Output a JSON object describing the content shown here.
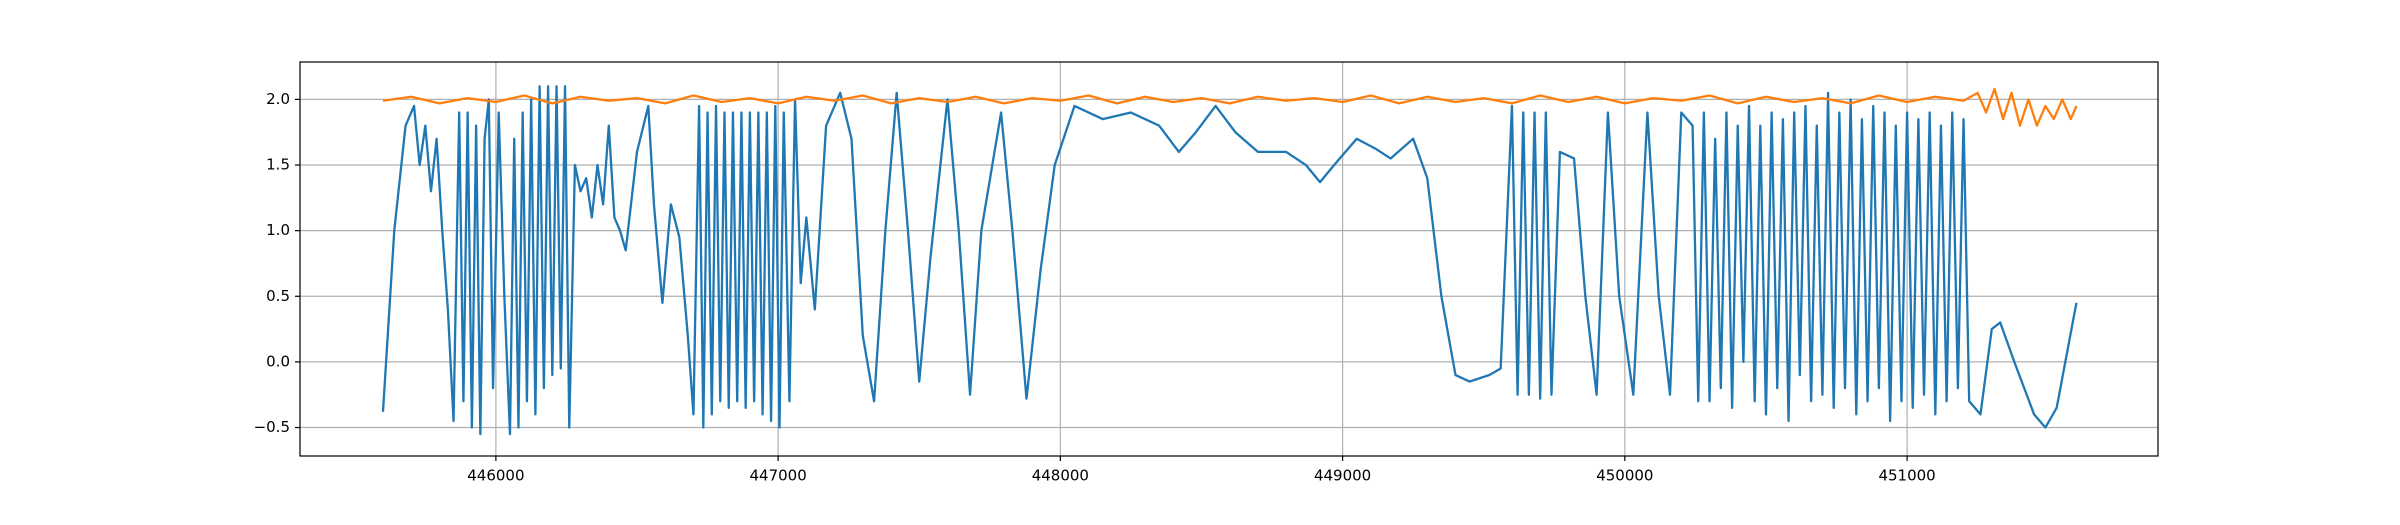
{
  "chart_data": {
    "type": "line",
    "grid": true,
    "xlim": [
      445306,
      451889
    ],
    "ylim": [
      -0.717,
      2.285
    ],
    "xticks": [
      446000,
      447000,
      448000,
      449000,
      450000,
      451000
    ],
    "yticks": [
      {
        "value": -0.5,
        "label": "−0.5"
      },
      {
        "value": 0,
        "label": "0.0"
      },
      {
        "value": 0.5,
        "label": "0.5"
      },
      {
        "value": 1,
        "label": "1.0"
      },
      {
        "value": 1.5,
        "label": "1.5"
      },
      {
        "value": 2,
        "label": "2.0"
      }
    ],
    "series": [
      {
        "color": "#1f77b4",
        "x": [
          445600,
          445640,
          445680,
          445710,
          445730,
          445750,
          445770,
          445790,
          445810,
          445830,
          445850,
          445870,
          445885,
          445900,
          445915,
          445930,
          445945,
          445960,
          445975,
          445990,
          446010,
          446030,
          446050,
          446065,
          446080,
          446095,
          446110,
          446125,
          446140,
          446155,
          446170,
          446185,
          446200,
          446215,
          446230,
          446245,
          446260,
          446280,
          446300,
          446320,
          446340,
          446360,
          446380,
          446400,
          446420,
          446440,
          446460,
          446500,
          446540,
          446560,
          446590,
          446620,
          446650,
          446680,
          446700,
          446720,
          446735,
          446750,
          446765,
          446780,
          446795,
          446810,
          446825,
          446840,
          446855,
          446870,
          446885,
          446900,
          446915,
          446930,
          446945,
          446960,
          446975,
          446990,
          447005,
          447020,
          447040,
          447060,
          447080,
          447100,
          447130,
          447170,
          447220,
          447260,
          447300,
          447340,
          447380,
          447420,
          447460,
          447500,
          447540,
          447600,
          447640,
          447680,
          447720,
          447790,
          447830,
          447880,
          447930,
          447980,
          448050,
          448150,
          448250,
          448350,
          448420,
          448480,
          448550,
          448620,
          448700,
          448800,
          448870,
          448920,
          448970,
          449050,
          449120,
          449170,
          449250,
          449300,
          449350,
          449400,
          449450,
          449520,
          449560,
          449600,
          449620,
          449640,
          449660,
          449680,
          449700,
          449720,
          449740,
          449770,
          449820,
          449860,
          449900,
          449940,
          449980,
          450030,
          450080,
          450120,
          450160,
          450200,
          450240,
          450260,
          450280,
          450300,
          450320,
          450340,
          450360,
          450380,
          450400,
          450420,
          450440,
          450460,
          450480,
          450500,
          450520,
          450540,
          450560,
          450580,
          450600,
          450620,
          450640,
          450660,
          450680,
          450700,
          450720,
          450740,
          450760,
          450780,
          450800,
          450820,
          450840,
          450860,
          450880,
          450900,
          450920,
          450940,
          450960,
          450980,
          451000,
          451020,
          451040,
          451060,
          451080,
          451100,
          451120,
          451140,
          451160,
          451180,
          451200,
          451220,
          451260,
          451300,
          451330,
          451380,
          451450,
          451490,
          451530,
          451600
        ],
        "values": [
          -0.38,
          1.0,
          1.8,
          1.95,
          1.5,
          1.8,
          1.3,
          1.7,
          1.0,
          0.4,
          -0.45,
          1.9,
          -0.3,
          1.9,
          -0.5,
          1.8,
          -0.55,
          1.7,
          2.0,
          -0.2,
          1.9,
          0.5,
          -0.55,
          1.7,
          -0.5,
          1.9,
          -0.3,
          2.0,
          -0.4,
          2.1,
          -0.2,
          2.1,
          -0.1,
          2.1,
          -0.05,
          2.1,
          -0.5,
          1.5,
          1.3,
          1.4,
          1.1,
          1.5,
          1.2,
          1.8,
          1.1,
          1.0,
          0.85,
          1.6,
          1.95,
          1.2,
          0.45,
          1.2,
          0.95,
          0.2,
          -0.4,
          1.95,
          -0.5,
          1.9,
          -0.4,
          1.95,
          -0.3,
          1.9,
          -0.35,
          1.9,
          -0.3,
          1.9,
          -0.35,
          1.9,
          -0.3,
          1.9,
          -0.4,
          1.9,
          -0.45,
          1.95,
          -0.5,
          1.9,
          -0.3,
          2.0,
          0.6,
          1.1,
          0.4,
          1.8,
          2.05,
          1.7,
          0.2,
          -0.3,
          1.0,
          2.05,
          1.0,
          -0.15,
          0.8,
          2.0,
          1.0,
          -0.25,
          1.0,
          1.9,
          1.0,
          -0.28,
          0.7,
          1.5,
          1.95,
          1.85,
          1.9,
          1.8,
          1.6,
          1.75,
          1.95,
          1.75,
          1.6,
          1.6,
          1.5,
          1.37,
          1.5,
          1.7,
          1.62,
          1.55,
          1.7,
          1.4,
          0.5,
          -0.1,
          -0.15,
          -0.1,
          -0.05,
          1.95,
          -0.25,
          1.9,
          -0.25,
          1.9,
          -0.28,
          1.9,
          -0.25,
          1.6,
          1.55,
          0.5,
          -0.25,
          1.9,
          0.5,
          -0.25,
          1.9,
          0.5,
          -0.25,
          1.9,
          1.8,
          -0.3,
          1.9,
          -0.3,
          1.7,
          -0.2,
          1.9,
          -0.35,
          1.8,
          0.0,
          1.95,
          -0.3,
          1.8,
          -0.4,
          1.9,
          -0.2,
          1.85,
          -0.45,
          1.9,
          -0.1,
          1.95,
          -0.3,
          1.8,
          -0.25,
          2.05,
          -0.35,
          1.9,
          -0.2,
          2.0,
          -0.4,
          1.85,
          -0.3,
          1.95,
          -0.2,
          1.9,
          -0.45,
          1.8,
          -0.3,
          1.9,
          -0.35,
          1.85,
          -0.25,
          1.9,
          -0.4,
          1.8,
          -0.3,
          1.9,
          -0.2,
          1.85,
          -0.3,
          -0.4,
          0.25,
          0.3,
          0.0,
          -0.4,
          -0.5,
          -0.35,
          0.45
        ]
      },
      {
        "color": "#ff7f0e",
        "x": [
          445600,
          445700,
          445800,
          445900,
          446000,
          446100,
          446200,
          446300,
          446400,
          446500,
          446600,
          446700,
          446800,
          446900,
          447000,
          447100,
          447200,
          447300,
          447400,
          447500,
          447600,
          447700,
          447800,
          447900,
          448000,
          448100,
          448200,
          448300,
          448400,
          448500,
          448600,
          448700,
          448800,
          448900,
          449000,
          449100,
          449200,
          449300,
          449400,
          449500,
          449600,
          449700,
          449800,
          449900,
          450000,
          450100,
          450200,
          450300,
          450400,
          450500,
          450600,
          450700,
          450800,
          450900,
          451000,
          451100,
          451200,
          451250,
          451280,
          451310,
          451340,
          451370,
          451400,
          451430,
          451460,
          451490,
          451520,
          451550,
          451580,
          451600
        ],
        "values": [
          1.99,
          2.02,
          1.97,
          2.01,
          1.98,
          2.03,
          1.97,
          2.02,
          1.99,
          2.01,
          1.97,
          2.03,
          1.98,
          2.01,
          1.97,
          2.02,
          1.99,
          2.03,
          1.97,
          2.01,
          1.98,
          2.02,
          1.97,
          2.01,
          1.99,
          2.03,
          1.97,
          2.02,
          1.98,
          2.01,
          1.97,
          2.02,
          1.99,
          2.01,
          1.98,
          2.03,
          1.97,
          2.02,
          1.98,
          2.01,
          1.97,
          2.03,
          1.98,
          2.02,
          1.97,
          2.01,
          1.99,
          2.03,
          1.97,
          2.02,
          1.98,
          2.01,
          1.97,
          2.03,
          1.98,
          2.02,
          1.99,
          2.05,
          1.9,
          2.08,
          1.85,
          2.05,
          1.8,
          2.0,
          1.8,
          1.95,
          1.85,
          2.0,
          1.85,
          1.95
        ]
      }
    ]
  }
}
